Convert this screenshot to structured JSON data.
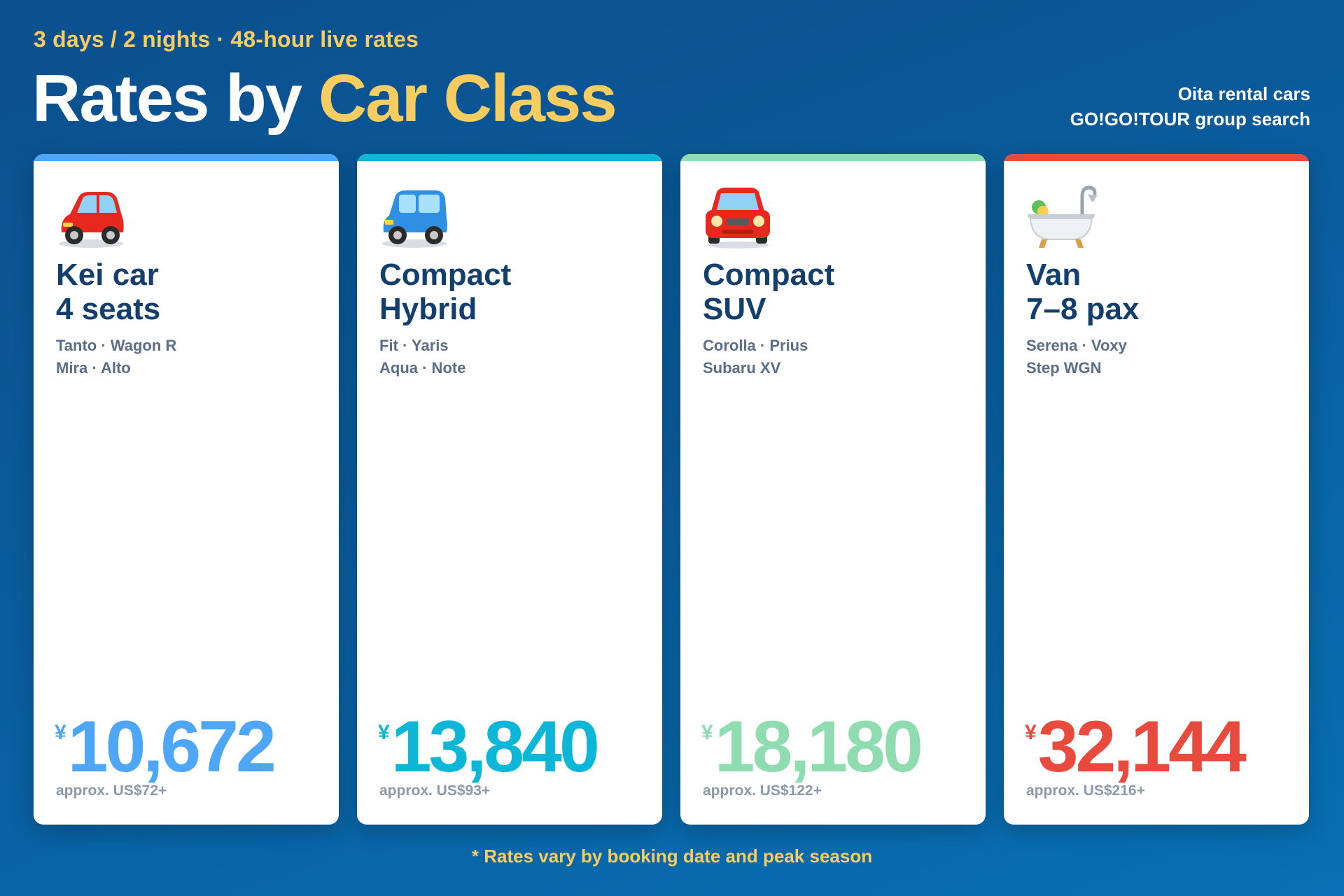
{
  "header": {
    "kicker": "3 days / 2 nights · 48-hour live rates",
    "title_part1": "Rates by ",
    "title_part2": "Car Class",
    "side_line1": "Oita rental cars",
    "side_line2": "GO!GO!TOUR group search"
  },
  "cards": [
    {
      "icon": "red-car-icon",
      "name_line1": "Kei car",
      "name_line2": "4 seats",
      "models_line1": "Tanto · Wagon R",
      "models_line2": "Mira · Alto",
      "currency": "¥",
      "price": "10,672",
      "usd": "approx. US$72+",
      "accent": "#4da6f7"
    },
    {
      "icon": "blue-car-icon",
      "name_line1": "Compact",
      "name_line2": "Hybrid",
      "models_line1": "Fit · Yaris",
      "models_line2": "Aqua · Note",
      "currency": "¥",
      "price": "13,840",
      "usd": "approx. US$93+",
      "accent": "#0bb6d6"
    },
    {
      "icon": "red-car-front-icon",
      "name_line1": "Compact",
      "name_line2": "SUV",
      "models_line1": "Corolla · Prius",
      "models_line2": "Subaru XV",
      "currency": "¥",
      "price": "18,180",
      "usd": "approx. US$122+",
      "accent": "#8fdcb0"
    },
    {
      "icon": "bathtub-icon",
      "name_line1": "Van",
      "name_line2": "7–8 pax",
      "models_line1": "Serena · Voxy",
      "models_line2": "Step WGN",
      "currency": "¥",
      "price": "32,144",
      "usd": "approx. US$216+",
      "accent": "#e84b3e"
    }
  ],
  "footnote": "* Rates vary by booking date and peak season"
}
